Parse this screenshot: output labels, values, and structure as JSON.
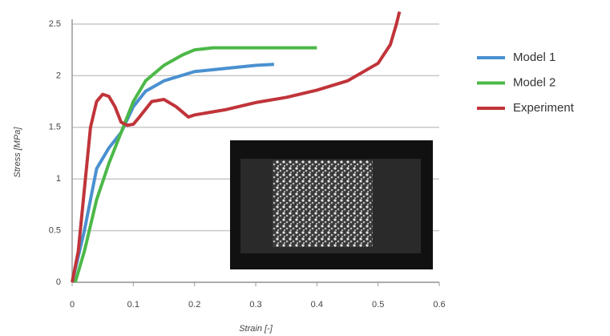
{
  "chart_data": {
    "type": "line",
    "xlabel": "Strain [-]",
    "ylabel": "Stress [MPa]",
    "xlim": [
      0,
      0.6
    ],
    "xticks": [
      0,
      0.1,
      0.2,
      0.3,
      0.4,
      0.5,
      0.6
    ],
    "ylim": [
      0,
      2.5
    ],
    "yticks": [
      0,
      0.5,
      1,
      1.5,
      2,
      2.5
    ],
    "grid": true,
    "legend": "right",
    "series": [
      {
        "name": "Model 1",
        "color": "#4a90d0",
        "x": [
          0,
          0.02,
          0.04,
          0.06,
          0.08,
          0.1,
          0.12,
          0.15,
          0.2,
          0.25,
          0.3,
          0.33
        ],
        "values": [
          0,
          0.5,
          1.1,
          1.3,
          1.45,
          1.7,
          1.85,
          1.95,
          2.04,
          2.07,
          2.1,
          2.11
        ]
      },
      {
        "name": "Model 2",
        "color": "#4cb848",
        "x": [
          0.005,
          0.02,
          0.04,
          0.06,
          0.08,
          0.1,
          0.12,
          0.15,
          0.18,
          0.2,
          0.23,
          0.3,
          0.4
        ],
        "values": [
          0,
          0.3,
          0.8,
          1.15,
          1.45,
          1.75,
          1.95,
          2.1,
          2.2,
          2.25,
          2.27,
          2.27,
          2.27
        ]
      },
      {
        "name": "Experiment",
        "color": "#c0343a",
        "x": [
          0,
          0.01,
          0.02,
          0.03,
          0.04,
          0.05,
          0.06,
          0.07,
          0.08,
          0.09,
          0.1,
          0.11,
          0.13,
          0.15,
          0.17,
          0.19,
          0.2,
          0.25,
          0.3,
          0.35,
          0.4,
          0.45,
          0.5,
          0.52,
          0.53,
          0.535
        ],
        "values": [
          0,
          0.3,
          0.9,
          1.5,
          1.75,
          1.82,
          1.8,
          1.7,
          1.55,
          1.52,
          1.53,
          1.6,
          1.75,
          1.77,
          1.7,
          1.6,
          1.62,
          1.67,
          1.74,
          1.79,
          1.86,
          1.95,
          2.12,
          2.3,
          2.5,
          2.62
        ]
      }
    ]
  }
}
